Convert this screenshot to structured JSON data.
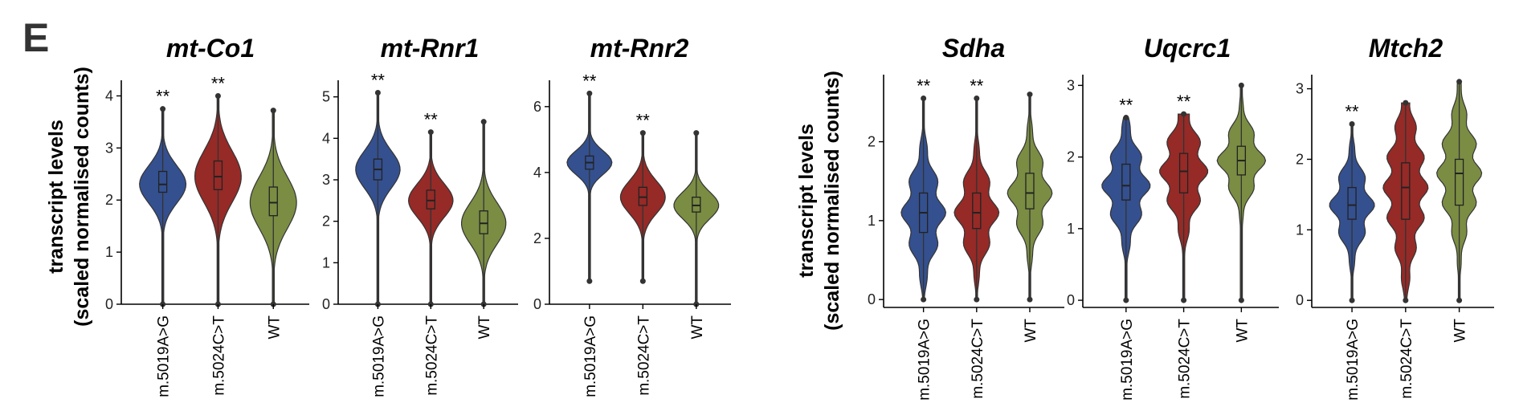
{
  "figure": {
    "panel_label": "E",
    "ylabel_line1": "transcript levels",
    "ylabel_line2": "(scaled normalised counts)"
  },
  "colors": {
    "m.5019A>G": "#34508f",
    "m.5024C>T": "#952a27",
    "WT": "#7a8d43"
  },
  "chart_data": [
    {
      "type": "violin",
      "title": "mt-Co1",
      "categories": [
        "m.5019A>G",
        "m.5024C>T",
        "WT"
      ],
      "yticks": [
        0,
        1,
        2,
        3,
        4
      ],
      "ylim": [
        0,
        4.3
      ],
      "series": [
        {
          "category": "m.5019A>G",
          "median": 2.3,
          "q1": 2.15,
          "q3": 2.55,
          "min": 0,
          "max": 3.75,
          "significance": "**"
        },
        {
          "category": "m.5024C>T",
          "median": 2.45,
          "q1": 2.2,
          "q3": 2.75,
          "min": 0,
          "max": 4.0,
          "significance": "**"
        },
        {
          "category": "WT",
          "median": 1.95,
          "q1": 1.7,
          "q3": 2.25,
          "min": 0,
          "max": 3.72,
          "significance": ""
        }
      ]
    },
    {
      "type": "violin",
      "title": "mt-Rnr1",
      "categories": [
        "m.5019A>G",
        "m.5024C>T",
        "WT"
      ],
      "yticks": [
        0,
        1,
        2,
        3,
        4,
        5
      ],
      "ylim": [
        0,
        5.4
      ],
      "series": [
        {
          "category": "m.5019A>G",
          "median": 3.25,
          "q1": 3.0,
          "q3": 3.5,
          "min": 0,
          "max": 5.1,
          "significance": "**"
        },
        {
          "category": "m.5024C>T",
          "median": 2.5,
          "q1": 2.3,
          "q3": 2.75,
          "min": 0,
          "max": 4.15,
          "significance": "**"
        },
        {
          "category": "WT",
          "median": 1.95,
          "q1": 1.7,
          "q3": 2.25,
          "min": 0,
          "max": 4.4,
          "significance": ""
        }
      ]
    },
    {
      "type": "violin",
      "title": "mt-Rnr2",
      "categories": [
        "m.5019A>G",
        "m.5024C>T",
        "WT"
      ],
      "yticks": [
        0,
        2,
        4,
        6
      ],
      "ylim": [
        0,
        6.8
      ],
      "series": [
        {
          "category": "m.5019A>G",
          "median": 4.3,
          "q1": 4.1,
          "q3": 4.5,
          "min": 0.7,
          "max": 6.4,
          "significance": "**"
        },
        {
          "category": "m.5024C>T",
          "median": 3.25,
          "q1": 3.0,
          "q3": 3.55,
          "min": 0.7,
          "max": 5.2,
          "significance": "**"
        },
        {
          "category": "WT",
          "median": 3.0,
          "q1": 2.8,
          "q3": 3.25,
          "min": 0,
          "max": 5.2,
          "significance": ""
        }
      ]
    },
    {
      "type": "violin",
      "title": "Sdha",
      "categories": [
        "m.5019A>G",
        "m.5024C>T",
        "WT"
      ],
      "yticks": [
        0,
        1,
        2
      ],
      "ylim": [
        -0.1,
        2.85
      ],
      "series": [
        {
          "category": "m.5019A>G",
          "median": 1.1,
          "q1": 0.85,
          "q3": 1.35,
          "min": 0,
          "max": 2.55,
          "significance": "**"
        },
        {
          "category": "m.5024C>T",
          "median": 1.1,
          "q1": 0.9,
          "q3": 1.35,
          "min": 0,
          "max": 2.55,
          "significance": "**"
        },
        {
          "category": "WT",
          "median": 1.35,
          "q1": 1.15,
          "q3": 1.6,
          "min": 0,
          "max": 2.6,
          "significance": ""
        }
      ]
    },
    {
      "type": "violin",
      "title": "Uqcrc1",
      "categories": [
        "m.5019A>G",
        "m.5024C>T",
        "WT"
      ],
      "yticks": [
        0,
        1,
        2,
        3
      ],
      "ylim": [
        -0.1,
        3.15
      ],
      "series": [
        {
          "category": "m.5019A>G",
          "median": 1.6,
          "q1": 1.4,
          "q3": 1.9,
          "min": 0,
          "max": 2.55,
          "significance": "**"
        },
        {
          "category": "m.5024C>T",
          "median": 1.8,
          "q1": 1.5,
          "q3": 2.05,
          "min": 0,
          "max": 2.6,
          "significance": "**"
        },
        {
          "category": "WT",
          "median": 1.95,
          "q1": 1.75,
          "q3": 2.15,
          "min": 0,
          "max": 3.0,
          "significance": ""
        }
      ]
    },
    {
      "type": "violin",
      "title": "Mtch2",
      "categories": [
        "m.5019A>G",
        "m.5024C>T",
        "WT"
      ],
      "yticks": [
        0,
        1,
        2,
        3
      ],
      "ylim": [
        -0.1,
        3.2
      ],
      "series": [
        {
          "category": "m.5019A>G",
          "median": 1.35,
          "q1": 1.15,
          "q3": 1.6,
          "min": 0,
          "max": 2.5,
          "significance": "**"
        },
        {
          "category": "m.5024C>T",
          "median": 1.6,
          "q1": 1.15,
          "q3": 1.95,
          "min": 0,
          "max": 2.8,
          "significance": ""
        },
        {
          "category": "WT",
          "median": 1.8,
          "q1": 1.35,
          "q3": 2.0,
          "min": 0,
          "max": 3.1,
          "significance": ""
        }
      ]
    }
  ]
}
